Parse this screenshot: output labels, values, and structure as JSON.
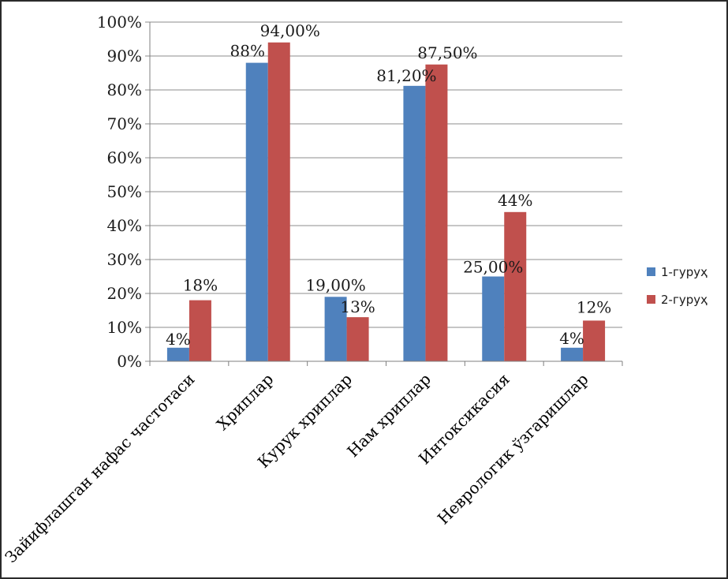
{
  "chart_data": {
    "type": "bar",
    "categories": [
      "Зайифлашган нафас частотаси",
      "Хриплар",
      "Курук хриплар",
      "Нам хриплар",
      "Интоксикасия",
      "Неврологик ўзгаришлар"
    ],
    "series": [
      {
        "name": "1-гуруҳ",
        "color": "#4f81bd",
        "values": [
          4,
          88,
          19,
          81.2,
          25,
          4
        ],
        "labels": [
          "4%",
          "88%",
          "19,00%",
          "81,20%",
          "25,00%",
          "4%"
        ]
      },
      {
        "name": "2-гуруҳ",
        "color": "#c0504d",
        "values": [
          18,
          94,
          13,
          87.5,
          44,
          12
        ],
        "labels": [
          "18%",
          "94,00%",
          "13%",
          "87,50%",
          "44%",
          "12%"
        ]
      }
    ],
    "ylim": [
      0,
      100
    ],
    "yticks": [
      "0%",
      "10%",
      "20%",
      "30%",
      "40%",
      "50%",
      "60%",
      "70%",
      "80%",
      "90%",
      "100%"
    ],
    "grid": true,
    "legend": "right"
  }
}
